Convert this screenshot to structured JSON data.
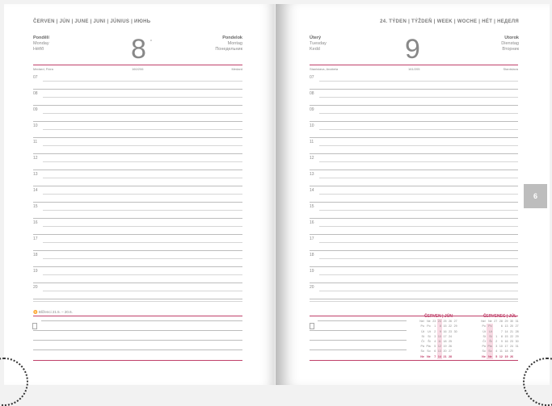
{
  "left": {
    "header": "ČERVEN | JÚN | JUNE | JUNI | JÚNIUS | ИЮНЬ",
    "day_cz": "Pondělí",
    "day_en": "Monday",
    "day_hu": "Hétfő",
    "day_sk": "Pondelok",
    "day_de": "Montag",
    "day_ru": "Понедельник",
    "number": "8",
    "mark": "c",
    "names_left": "Medard, Flóra",
    "day_of_year": "160/206",
    "names_right": "Medard",
    "zodiac": "Blíženci 21.5. – 20.6."
  },
  "right": {
    "header": "24. TÝDEN | TÝŽDEŇ | WEEK | WOCHE | HÉT | НЕДЕЛЯ",
    "day_cz": "Úterý",
    "day_en": "Tuesday",
    "day_hu": "Kedd",
    "day_sk": "Utorok",
    "day_de": "Dienstag",
    "day_ru": "Вторник",
    "number": "9",
    "names_left": "Stanislava, Anabela",
    "day_of_year": "161/205",
    "names_right": "Stanislava"
  },
  "hours": [
    "07",
    "08",
    "09",
    "10",
    "11",
    "12",
    "13",
    "14",
    "15",
    "16",
    "17",
    "18",
    "19",
    "20"
  ],
  "tab": "6",
  "mini_calendars": [
    {
      "title": "ČERVEN | JÚN",
      "weeks": [
        "23",
        "24",
        "25",
        "26",
        "27"
      ],
      "highlight_col": 1,
      "rows": [
        [
          "Po",
          "Po",
          "1",
          "8",
          "15",
          "22",
          "29"
        ],
        [
          "Út",
          "Ut",
          "2",
          "9",
          "16",
          "23",
          "30"
        ],
        [
          "St",
          "St",
          "3",
          "10",
          "17",
          "24",
          ""
        ],
        [
          "Čt",
          "Št",
          "4",
          "11",
          "18",
          "25",
          ""
        ],
        [
          "Pá",
          "Pia",
          "5",
          "12",
          "19",
          "26",
          ""
        ],
        [
          "So",
          "So",
          "6",
          "13",
          "20",
          "27",
          ""
        ],
        [
          "Ne",
          "Ne",
          "7",
          "14",
          "21",
          "28",
          ""
        ]
      ]
    },
    {
      "title": "ČERVENEC | JÚL",
      "weeks": [
        "27",
        "28",
        "29",
        "30",
        "31"
      ],
      "highlight_col": -1,
      "rows": [
        [
          "Po",
          "Po",
          "",
          "6",
          "13",
          "20",
          "27"
        ],
        [
          "Út",
          "Ut",
          "",
          "7",
          "14",
          "21",
          "28"
        ],
        [
          "St",
          "St",
          "1",
          "8",
          "15",
          "22",
          "29"
        ],
        [
          "Čt",
          "Št",
          "2",
          "9",
          "16",
          "23",
          "30"
        ],
        [
          "Pá",
          "Pia",
          "3",
          "10",
          "17",
          "24",
          "31"
        ],
        [
          "So",
          "So",
          "4",
          "11",
          "18",
          "25",
          ""
        ],
        [
          "Ne",
          "Ne",
          "5",
          "12",
          "19",
          "26",
          ""
        ]
      ]
    }
  ],
  "colors": {
    "accent": "#c0406a",
    "tab": "#bdbdbd"
  }
}
